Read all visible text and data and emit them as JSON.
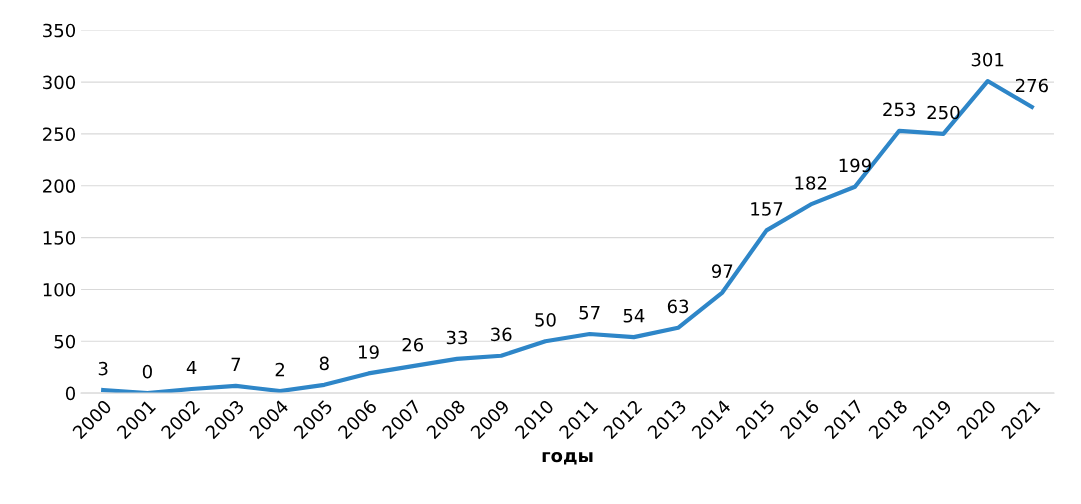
{
  "chart_data": {
    "type": "line",
    "xlabel": "годы",
    "categories": [
      "2000",
      "2001",
      "2002",
      "2003",
      "2004",
      "2005",
      "2006",
      "2007",
      "2008",
      "2009",
      "2010",
      "2011",
      "2012",
      "2013",
      "2014",
      "2015",
      "2016",
      "2017",
      "2018",
      "2019",
      "2020",
      "2021"
    ],
    "series": [
      {
        "color": "#2e86c8",
        "values": [
          3,
          0,
          4,
          7,
          2,
          8,
          19,
          26,
          33,
          36,
          50,
          57,
          54,
          63,
          97,
          157,
          182,
          199,
          253,
          250,
          301,
          276
        ]
      }
    ],
    "ylim": [
      0,
      350
    ],
    "yticks": [
      0,
      50,
      100,
      150,
      200,
      250,
      300,
      350
    ],
    "grid": "y",
    "data_labels": true,
    "marker": "none",
    "line_style": "solid"
  }
}
